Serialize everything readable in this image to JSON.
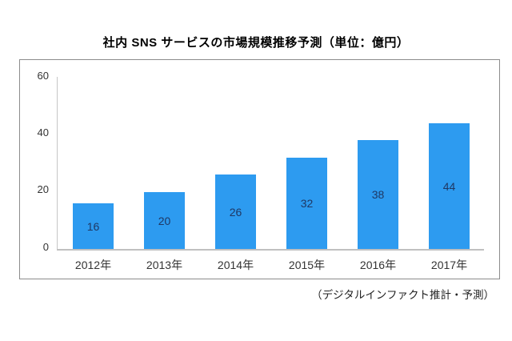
{
  "chart_data": {
    "type": "bar",
    "title": "社内 SNS サービスの市場規模推移予測（単位：億円）",
    "categories": [
      "2012年",
      "2013年",
      "2014年",
      "2015年",
      "2016年",
      "2017年"
    ],
    "values": [
      16,
      20,
      26,
      32,
      38,
      44
    ],
    "ytick_labels": [
      "60",
      "40",
      "20",
      "0"
    ],
    "ylim": [
      0,
      60
    ],
    "xlabel": "",
    "ylabel": "",
    "grid": false,
    "legend_position": "none",
    "unit": "億円",
    "bar_color": "#2d9bf0",
    "value_label_color": "#1f3864",
    "axis_line_color": "#c6c6c6",
    "frame_border_color": "#8c8c8c",
    "source_note": "（デジタルインファクト推計・予測）"
  }
}
